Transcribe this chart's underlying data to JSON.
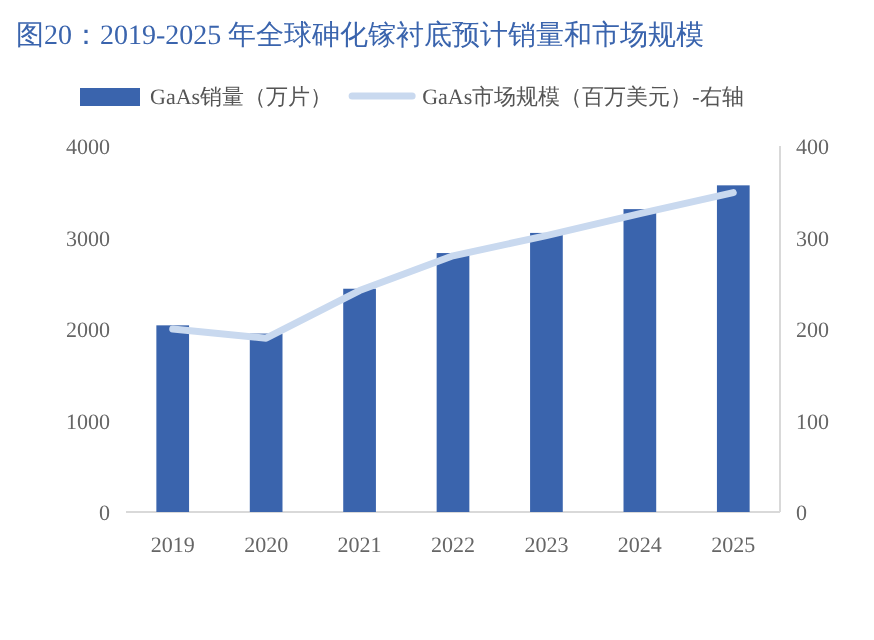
{
  "chart_data": {
    "type": "bar",
    "title": "图20：2019-2025 年全球砷化镓衬底预计销量和市场规模",
    "categories": [
      "2019",
      "2020",
      "2021",
      "2022",
      "2023",
      "2024",
      "2025"
    ],
    "series": [
      {
        "name": "GaAs销量（万片）",
        "color": "#3a64ad",
        "values": [
          2040,
          1950,
          2440,
          2830,
          3050,
          3310,
          3570
        ]
      },
      {
        "name": "GaAs市场规模（百万美元）-右轴",
        "color": "#c9d9ef",
        "type": "line",
        "axis": "y2",
        "values": [
          200,
          190,
          242,
          280,
          302,
          326,
          349
        ]
      }
    ],
    "ylim": [
      0,
      4000
    ],
    "yticks": [
      0,
      1000,
      2000,
      3000,
      4000
    ],
    "y2lim": [
      0,
      400
    ],
    "y2ticks": [
      0,
      100,
      200,
      300,
      400
    ],
    "legend": "top",
    "grid": false
  }
}
